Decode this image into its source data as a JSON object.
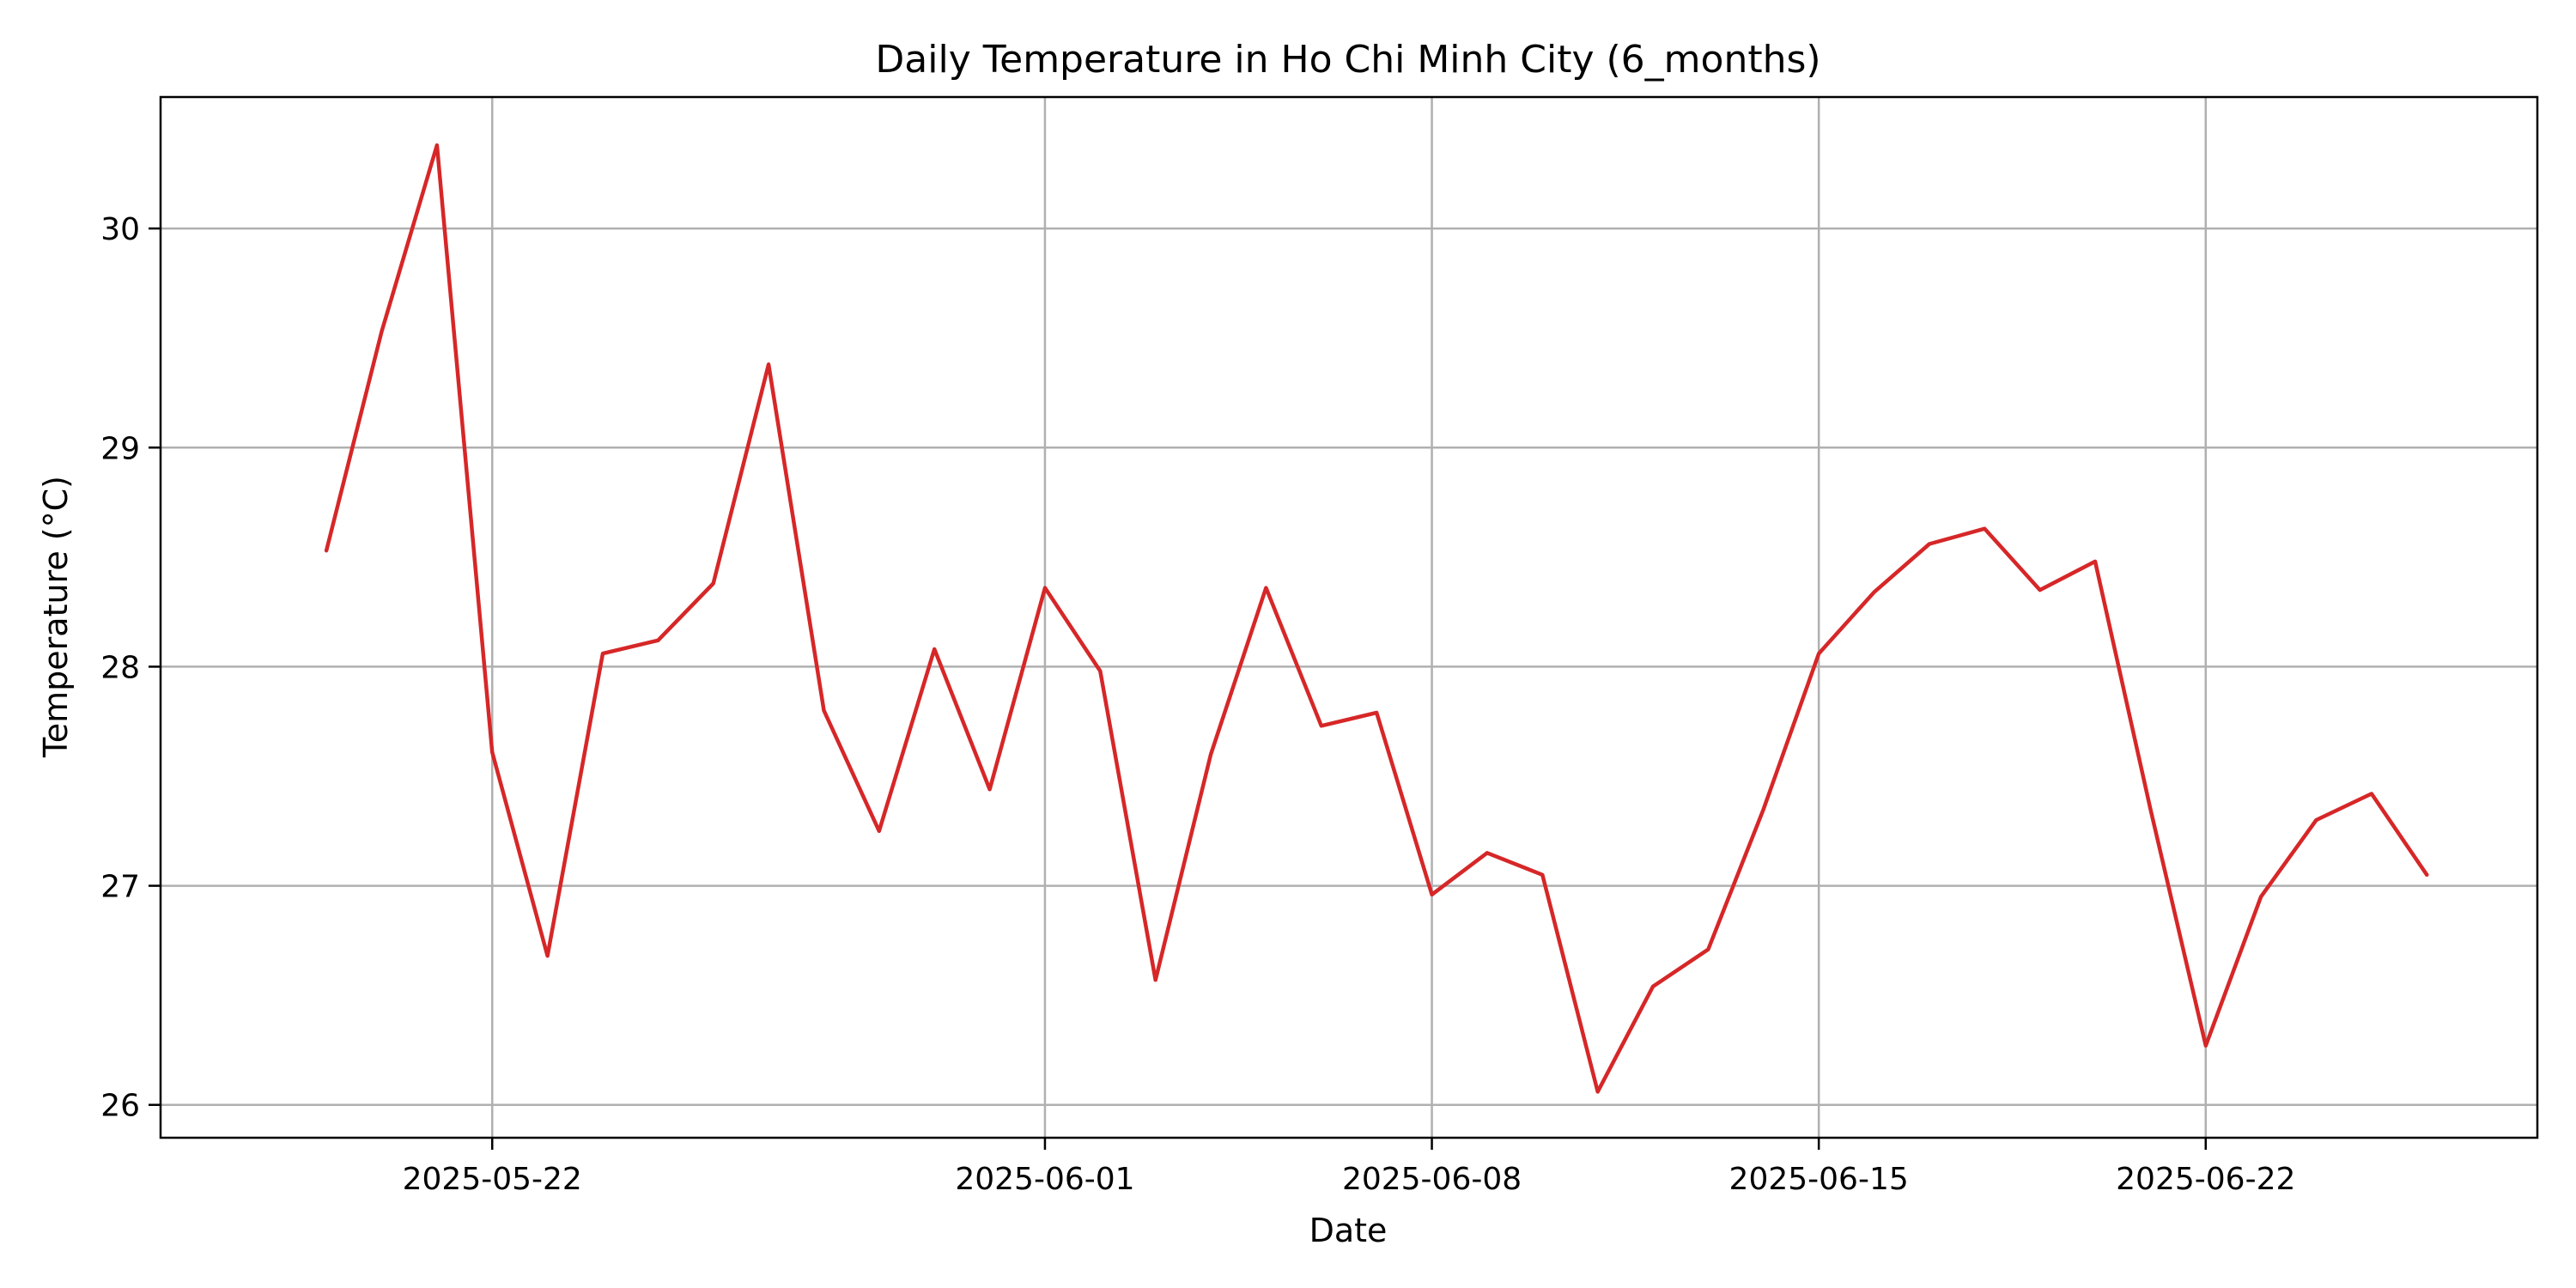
{
  "chart_data": {
    "type": "line",
    "title": "Daily Temperature in Ho Chi Minh City (6_months)",
    "xlabel": "Date",
    "ylabel": "Temperature (°C)",
    "grid": true,
    "legend": "none",
    "xlim": [
      "2025-05-16",
      "2025-06-28"
    ],
    "ylim": [
      25.85,
      30.6
    ],
    "x_ticks": [
      "2025-05-22",
      "2025-06-01",
      "2025-06-08",
      "2025-06-15",
      "2025-06-22"
    ],
    "y_ticks": [
      26,
      27,
      28,
      29,
      30
    ],
    "series": [
      {
        "color": "#d62728",
        "x": [
          "2025-05-19",
          "2025-05-20",
          "2025-05-21",
          "2025-05-22",
          "2025-05-23",
          "2025-05-24",
          "2025-05-25",
          "2025-05-26",
          "2025-05-27",
          "2025-05-28",
          "2025-05-29",
          "2025-05-30",
          "2025-05-31",
          "2025-06-01",
          "2025-06-02",
          "2025-06-03",
          "2025-06-04",
          "2025-06-05",
          "2025-06-06",
          "2025-06-07",
          "2025-06-08",
          "2025-06-09",
          "2025-06-10",
          "2025-06-11",
          "2025-06-12",
          "2025-06-13",
          "2025-06-14",
          "2025-06-15",
          "2025-06-16",
          "2025-06-17",
          "2025-06-18",
          "2025-06-19",
          "2025-06-20",
          "2025-06-21",
          "2025-06-22",
          "2025-06-23",
          "2025-06-24",
          "2025-06-25",
          "2025-06-26"
        ],
        "values": [
          28.53,
          29.53,
          30.38,
          27.61,
          26.68,
          28.06,
          28.12,
          28.38,
          29.38,
          27.8,
          27.25,
          28.08,
          27.44,
          28.36,
          27.98,
          26.57,
          27.6,
          28.36,
          27.73,
          27.79,
          26.96,
          27.15,
          27.05,
          26.06,
          26.54,
          26.71,
          27.35,
          28.06,
          28.34,
          28.56,
          28.63,
          28.35,
          28.48,
          27.35,
          26.27,
          26.95,
          27.3,
          27.42,
          27.05
        ]
      }
    ]
  }
}
